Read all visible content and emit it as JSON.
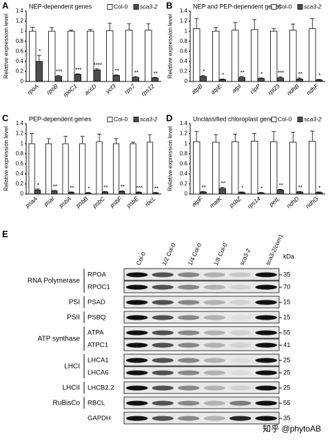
{
  "chart_data": [
    {
      "type": "bar",
      "panel": "A",
      "title": "NEP-dependent genes",
      "y_label": "Relative expression level",
      "categories": [
        "rpoA",
        "rpoB",
        "rpoC1",
        "accD",
        "ycf3",
        "rps7",
        "rps12"
      ],
      "series": [
        {
          "name": "Col-0",
          "color": "#ffffff",
          "values": [
            1.0,
            1.0,
            1.0,
            1.0,
            1.01,
            1.02,
            1.02
          ],
          "errors": [
            0.08,
            0.07,
            0.02,
            0.03,
            0.15,
            0.13,
            0.13
          ]
        },
        {
          "name": "sca3-2",
          "color": "#4d4d4d",
          "values": [
            0.4,
            0.1,
            0.14,
            0.23,
            0.12,
            0.08,
            0.07
          ],
          "errors": [
            0.12,
            0.02,
            0.01,
            0.02,
            0.01,
            0.02,
            0.01
          ],
          "significance": [
            "*",
            "***",
            "***",
            "****",
            "**",
            "**",
            "**"
          ]
        }
      ],
      "ylim": [
        0,
        1.4
      ],
      "yticks": [
        0,
        0.2,
        0.4,
        0.6,
        0.8,
        1,
        1.2,
        1.4
      ],
      "legend": "upper right"
    },
    {
      "type": "bar",
      "panel": "B",
      "title": "NEP and PEP-dependent genes",
      "y_label": "Relative expression level",
      "categories": [
        "atpB",
        "atpE",
        "atpI",
        "clpP",
        "rpl23",
        "ndhB",
        "ndhF"
      ],
      "series": [
        {
          "name": "Col-0",
          "color": "#ffffff",
          "values": [
            1.05,
            1.0,
            1.02,
            1.03,
            1.0,
            1.02,
            1.05
          ],
          "errors": [
            0.2,
            0.07,
            0.15,
            0.2,
            0.05,
            0.12,
            0.2
          ]
        },
        {
          "name": "sca3-2",
          "color": "#4d4d4d",
          "values": [
            0.1,
            0.04,
            0.08,
            0.06,
            0.07,
            0.05,
            0.03
          ],
          "errors": [
            0.02,
            0.01,
            0.02,
            0.01,
            0.02,
            0.02,
            0.01
          ],
          "significance": [
            "*",
            "*",
            "**",
            "*",
            "***",
            "**",
            "*"
          ]
        }
      ],
      "ylim": [
        0,
        1.4
      ],
      "yticks": [
        0,
        0.2,
        0.4,
        0.6,
        0.8,
        1,
        1.2,
        1.4
      ],
      "legend": "upper right"
    },
    {
      "type": "bar",
      "panel": "C",
      "title": "PEP-dependent genes",
      "y_label": "Relative expression level",
      "categories": [
        "psaA",
        "psaI",
        "psbA",
        "psbB",
        "psbC",
        "psbF",
        "psbE",
        "rbcL"
      ],
      "series": [
        {
          "name": "Col-0",
          "color": "#ffffff",
          "values": [
            1.0,
            1.0,
            1.0,
            1.0,
            1.04,
            1.0,
            1.0,
            1.03
          ],
          "errors": [
            0.2,
            0.1,
            0.15,
            0.15,
            0.15,
            0.1,
            0.03,
            0.15
          ]
        },
        {
          "name": "sca3-2",
          "color": "#4d4d4d",
          "values": [
            0.08,
            0.06,
            0.03,
            0.02,
            0.04,
            0.05,
            0.03,
            0.02
          ],
          "errors": [
            0.02,
            0.01,
            0.01,
            0.01,
            0.01,
            0.01,
            0.01,
            0.01
          ],
          "significance": [
            "*",
            "**",
            "**",
            "*",
            "**",
            "**",
            "***",
            "**"
          ]
        }
      ],
      "ylim": [
        0,
        1.4
      ],
      "yticks": [
        0,
        0.2,
        0.4,
        0.6,
        0.8,
        1,
        1.2,
        1.4
      ],
      "legend": "upper right"
    },
    {
      "type": "bar",
      "panel": "D",
      "title": "Unclassified chloroplast genes",
      "y_label": "Relative expression level",
      "categories": [
        "atpF",
        "matK",
        "psbZ",
        "rps14",
        "petL",
        "ndhD",
        "ndhG"
      ],
      "series": [
        {
          "name": "Col-0",
          "color": "#ffffff",
          "values": [
            1.04,
            1.03,
            1.04,
            1.05,
            1.04,
            1.03,
            1.05
          ],
          "errors": [
            0.2,
            0.15,
            0.15,
            0.15,
            0.2,
            0.2,
            0.2
          ]
        },
        {
          "name": "sca3-2",
          "color": "#4d4d4d",
          "values": [
            0.04,
            0.11,
            0.03,
            0.02,
            0.08,
            0.04,
            0.03
          ],
          "errors": [
            0.01,
            0.02,
            0.01,
            0.01,
            0.01,
            0.01,
            0.01
          ],
          "significance": [
            "**",
            "**",
            "*",
            "*",
            "**",
            "**",
            "*"
          ]
        }
      ],
      "ylim": [
        0,
        1.4
      ],
      "yticks": [
        0,
        0.2,
        0.4,
        0.6,
        0.8,
        1,
        1.2,
        1.4
      ],
      "legend": "upper right"
    }
  ],
  "blot": {
    "panel": "E",
    "lanes": [
      "Col-0",
      "1/2 Col-0",
      "1/4 Col-0",
      "1/8 Col-0",
      "sca3-2",
      "sca3-2/com1"
    ],
    "unit": "kDa",
    "groups": [
      {
        "name": "RNA Polymerase",
        "rows": [
          {
            "protein": "RPOA",
            "marker": 35
          },
          {
            "protein": "RPOC1",
            "marker": 70
          }
        ]
      },
      {
        "name": "PSI",
        "rows": [
          {
            "protein": "PSAD",
            "marker": 15
          }
        ]
      },
      {
        "name": "PSII",
        "rows": [
          {
            "protein": "PSBQ",
            "marker": 15
          }
        ]
      },
      {
        "name": "ATP synthase",
        "rows": [
          {
            "protein": "ATPA",
            "marker": 55
          },
          {
            "protein": "ATPC1",
            "marker": 41
          }
        ]
      },
      {
        "name": "LHCI",
        "rows": [
          {
            "protein": "LHCA1",
            "marker": 25
          },
          {
            "protein": "LHCA6",
            "marker": 25
          }
        ]
      },
      {
        "name": "LHCII",
        "rows": [
          {
            "protein": "LHCB2.2",
            "marker": 25
          }
        ]
      },
      {
        "name": "RuBisCo",
        "rows": [
          {
            "protein": "RBCL",
            "marker": 55
          }
        ]
      },
      {
        "rows": [
          {
            "protein": "GAPDH",
            "marker": 35
          }
        ]
      }
    ],
    "watermark": "知乎 @phytoAB"
  }
}
